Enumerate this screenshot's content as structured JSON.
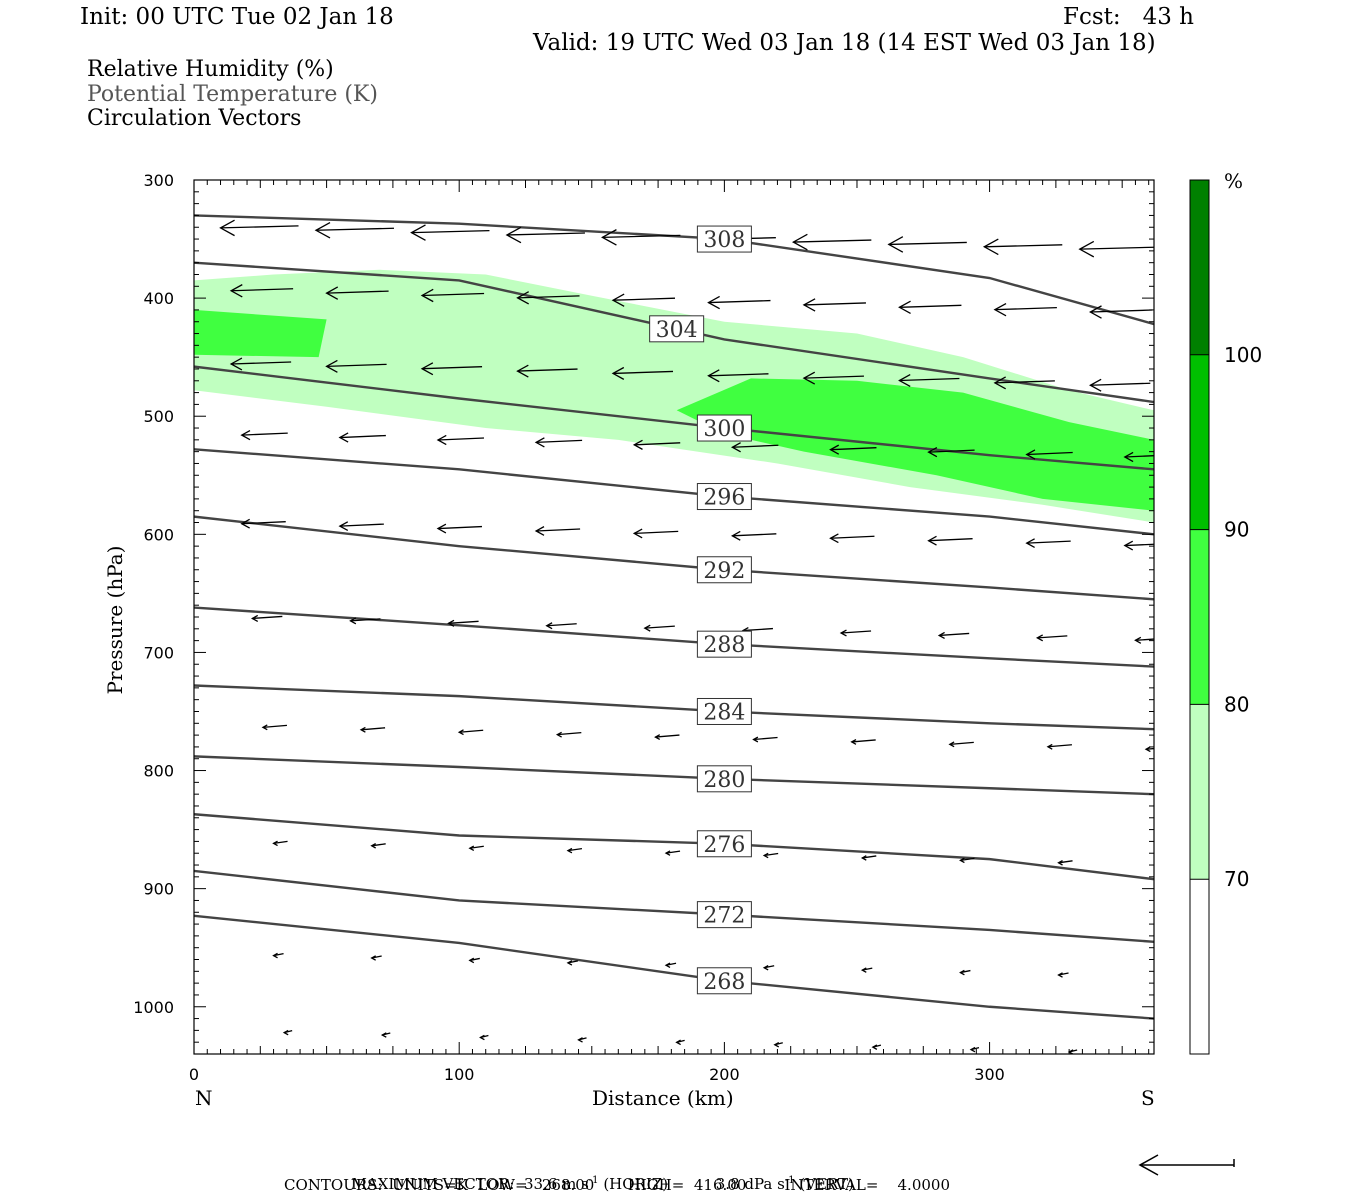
{
  "header": {
    "init": "Init: 00 UTC Tue 02 Jan 18",
    "fcst": "Fcst:   43 h",
    "valid": "Valid: 19 UTC Wed 03 Jan 18 (14 EST Wed 03 Jan 18)"
  },
  "fields": [
    "Relative Humidity (%)",
    "Potential Temperature (K)",
    "Circulation Vectors"
  ],
  "footer": {
    "max_vector_label": "MAXIMUM VECTOR:",
    "max_vector_horiz": "33.6 m s",
    "horiz_tag": "(HORIZ)",
    "max_vector_vert": "3.8 dPa s",
    "vert_tag": "(VERT)",
    "sup": "-1",
    "contours": "CONTOURS:  UNITS=K  LOW=   268.00       HIGH=  416.00        INTERVAL=    4.0000"
  },
  "colors": {
    "rh70": "#c0ffc0",
    "rh80": "#40ff40",
    "rh90": "#00c000",
    "rh100": "#008000",
    "theta": "#444444"
  },
  "chart_data": {
    "type": "cross-section",
    "xlabel": "Distance (km)",
    "ylabel": "Pressure (hPa)",
    "x_ticks": [
      0,
      100,
      200,
      300
    ],
    "y_ticks": [
      300,
      400,
      500,
      600,
      700,
      800,
      900,
      1000
    ],
    "xlim": [
      0,
      362
    ],
    "ylim": [
      1040,
      300
    ],
    "left_end": "N",
    "right_end": "S",
    "colorbar": {
      "unit": "%",
      "levels": [
        70,
        80,
        90,
        100
      ]
    },
    "theta_contours": [
      {
        "value": 308,
        "x": [
          0,
          100,
          200,
          300,
          362
        ],
        "p": [
          330,
          337,
          350,
          383,
          422
        ],
        "label_x": 200
      },
      {
        "value": 304,
        "x": [
          0,
          100,
          200,
          300,
          362
        ],
        "p": [
          370,
          385,
          435,
          468,
          488
        ],
        "label_x": 182
      },
      {
        "value": 300,
        "x": [
          0,
          100,
          200,
          300,
          362
        ],
        "p": [
          458,
          485,
          510,
          533,
          545
        ],
        "label_x": 200
      },
      {
        "value": 296,
        "x": [
          0,
          100,
          200,
          300,
          362
        ],
        "p": [
          528,
          545,
          568,
          585,
          600
        ],
        "label_x": 200
      },
      {
        "value": 292,
        "x": [
          0,
          100,
          200,
          300,
          362
        ],
        "p": [
          585,
          610,
          630,
          645,
          655
        ],
        "label_x": 200
      },
      {
        "value": 288,
        "x": [
          0,
          100,
          200,
          300,
          362
        ],
        "p": [
          662,
          677,
          693,
          705,
          712
        ],
        "label_x": 200
      },
      {
        "value": 284,
        "x": [
          0,
          100,
          200,
          300,
          362
        ],
        "p": [
          728,
          737,
          750,
          760,
          765
        ],
        "label_x": 200
      },
      {
        "value": 280,
        "x": [
          0,
          100,
          200,
          300,
          362
        ],
        "p": [
          788,
          797,
          807,
          815,
          820
        ],
        "label_x": 200
      },
      {
        "value": 276,
        "x": [
          0,
          100,
          200,
          300,
          362
        ],
        "p": [
          837,
          855,
          862,
          875,
          892
        ],
        "label_x": 200
      },
      {
        "value": 272,
        "x": [
          0,
          100,
          200,
          300,
          362
        ],
        "p": [
          885,
          910,
          922,
          935,
          945
        ],
        "label_x": 200
      },
      {
        "value": 268,
        "x": [
          0,
          100,
          200,
          300,
          362
        ],
        "p": [
          923,
          946,
          978,
          1000,
          1010
        ],
        "label_x": 200
      }
    ],
    "rh_regions": [
      {
        "level": 70,
        "points": [
          [
            0,
            385
          ],
          [
            30,
            380
          ],
          [
            70,
            376
          ],
          [
            110,
            380
          ],
          [
            150,
            398
          ],
          [
            200,
            420
          ],
          [
            250,
            430
          ],
          [
            290,
            450
          ],
          [
            330,
            478
          ],
          [
            362,
            495
          ],
          [
            362,
            590
          ],
          [
            320,
            575
          ],
          [
            270,
            560
          ],
          [
            220,
            540
          ],
          [
            160,
            520
          ],
          [
            110,
            510
          ],
          [
            50,
            492
          ],
          [
            0,
            478
          ]
        ]
      },
      {
        "level": 80,
        "points": [
          [
            0,
            410
          ],
          [
            50,
            418
          ],
          [
            47,
            450
          ],
          [
            0,
            448
          ]
        ]
      },
      {
        "level": 80,
        "points": [
          [
            182,
            495
          ],
          [
            210,
            468
          ],
          [
            250,
            470
          ],
          [
            290,
            480
          ],
          [
            330,
            505
          ],
          [
            362,
            520
          ],
          [
            362,
            580
          ],
          [
            320,
            570
          ],
          [
            280,
            550
          ],
          [
            230,
            530
          ],
          [
            200,
            515
          ]
        ]
      }
    ]
  }
}
